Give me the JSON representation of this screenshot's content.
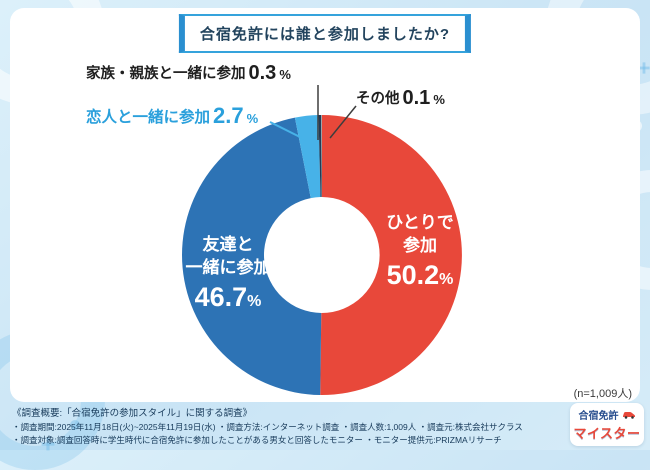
{
  "page": {
    "background": "#cde6f6",
    "panel": "#ffffff",
    "accent_blue": "#2a8fd0"
  },
  "header": {
    "title": "合宿免許には誰と参加しましたか?"
  },
  "chart_data": {
    "type": "pie",
    "donut": true,
    "title": "合宿免許には誰と参加しましたか?",
    "unit": "%",
    "start_angle_deg": 0,
    "direction": "clockwise",
    "segments": [
      {
        "label": "ひとりで参加",
        "value": 50.2,
        "color": "#e8483a"
      },
      {
        "label": "友達と一緒に参加",
        "value": 46.7,
        "color": "#2d73b5"
      },
      {
        "label": "恋人と一緒に参加",
        "value": 2.7,
        "color": "#47b2e8"
      },
      {
        "label": "家族・親族と一緒に参加",
        "value": 0.3,
        "color": "#233a54"
      },
      {
        "label": "その他",
        "value": 0.1,
        "color": "#9aa0a6"
      }
    ],
    "sample_note": "(n=1,009人)"
  },
  "labels": {
    "alone": {
      "name": "ひとりで\n参加",
      "value": "50.2",
      "unit": "%"
    },
    "friends": {
      "name": "友達と\n一緒に参加",
      "value": "46.7",
      "unit": "%"
    },
    "partner": {
      "name": "恋人と一緒に参加",
      "value": "2.7",
      "unit": "%"
    },
    "family": {
      "name": "家族・親族と一緒に参加",
      "value": "0.3",
      "unit": "%"
    },
    "other": {
      "name": "その他",
      "value": "0.1",
      "unit": "%"
    }
  },
  "footer": {
    "line1": "《調査概要:「合宿免許の参加スタイル」に関する調査》",
    "line2": "・調査期間:2025年11月18日(火)~2025年11月19日(水) ・調査方法:インターネット調査 ・調査人数:1,009人 ・調査元:株式会社サクラス",
    "line3": "・調査対象:調査回答時に学生時代に合宿免許に参加したことがある男女と回答したモニター ・モニター提供元:PRIZMAリサーチ"
  },
  "logo": {
    "line1": "合宿免許",
    "line2": "マイスター"
  }
}
